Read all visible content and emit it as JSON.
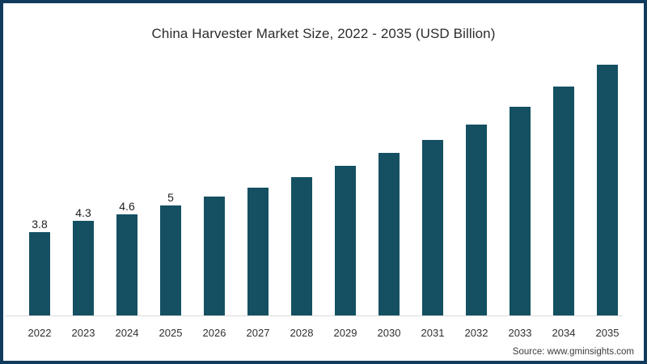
{
  "chart_data": {
    "type": "bar",
    "title": "China Harvester Market Size, 2022 - 2035 (USD Billion)",
    "categories": [
      "2022",
      "2023",
      "2024",
      "2025",
      "2026",
      "2027",
      "2028",
      "2029",
      "2030",
      "2031",
      "2032",
      "2033",
      "2034",
      "2035"
    ],
    "values": [
      3.8,
      4.3,
      4.6,
      5,
      5.4,
      5.8,
      6.3,
      6.8,
      7.4,
      8.0,
      8.7,
      9.5,
      10.4,
      11.4
    ],
    "value_labels": [
      "3.8",
      "4.3",
      "4.6",
      "5",
      "",
      "",
      "",
      "",
      "",
      "",
      "",
      "",
      "",
      ""
    ],
    "xlabel": "",
    "ylabel": "",
    "ylim": [
      0,
      12
    ],
    "grid": false,
    "legend_position": "none",
    "bar_color": "#145062"
  },
  "source": {
    "label": "Source: www.gminsights.com"
  },
  "colors": {
    "frame_border": "#113B5C",
    "bar": "#145062",
    "axis_line": "#DCDCDC",
    "title_text": "#2D2D2D",
    "tick_text": "#2F2F2F",
    "source_text": "#3C3C3C"
  }
}
